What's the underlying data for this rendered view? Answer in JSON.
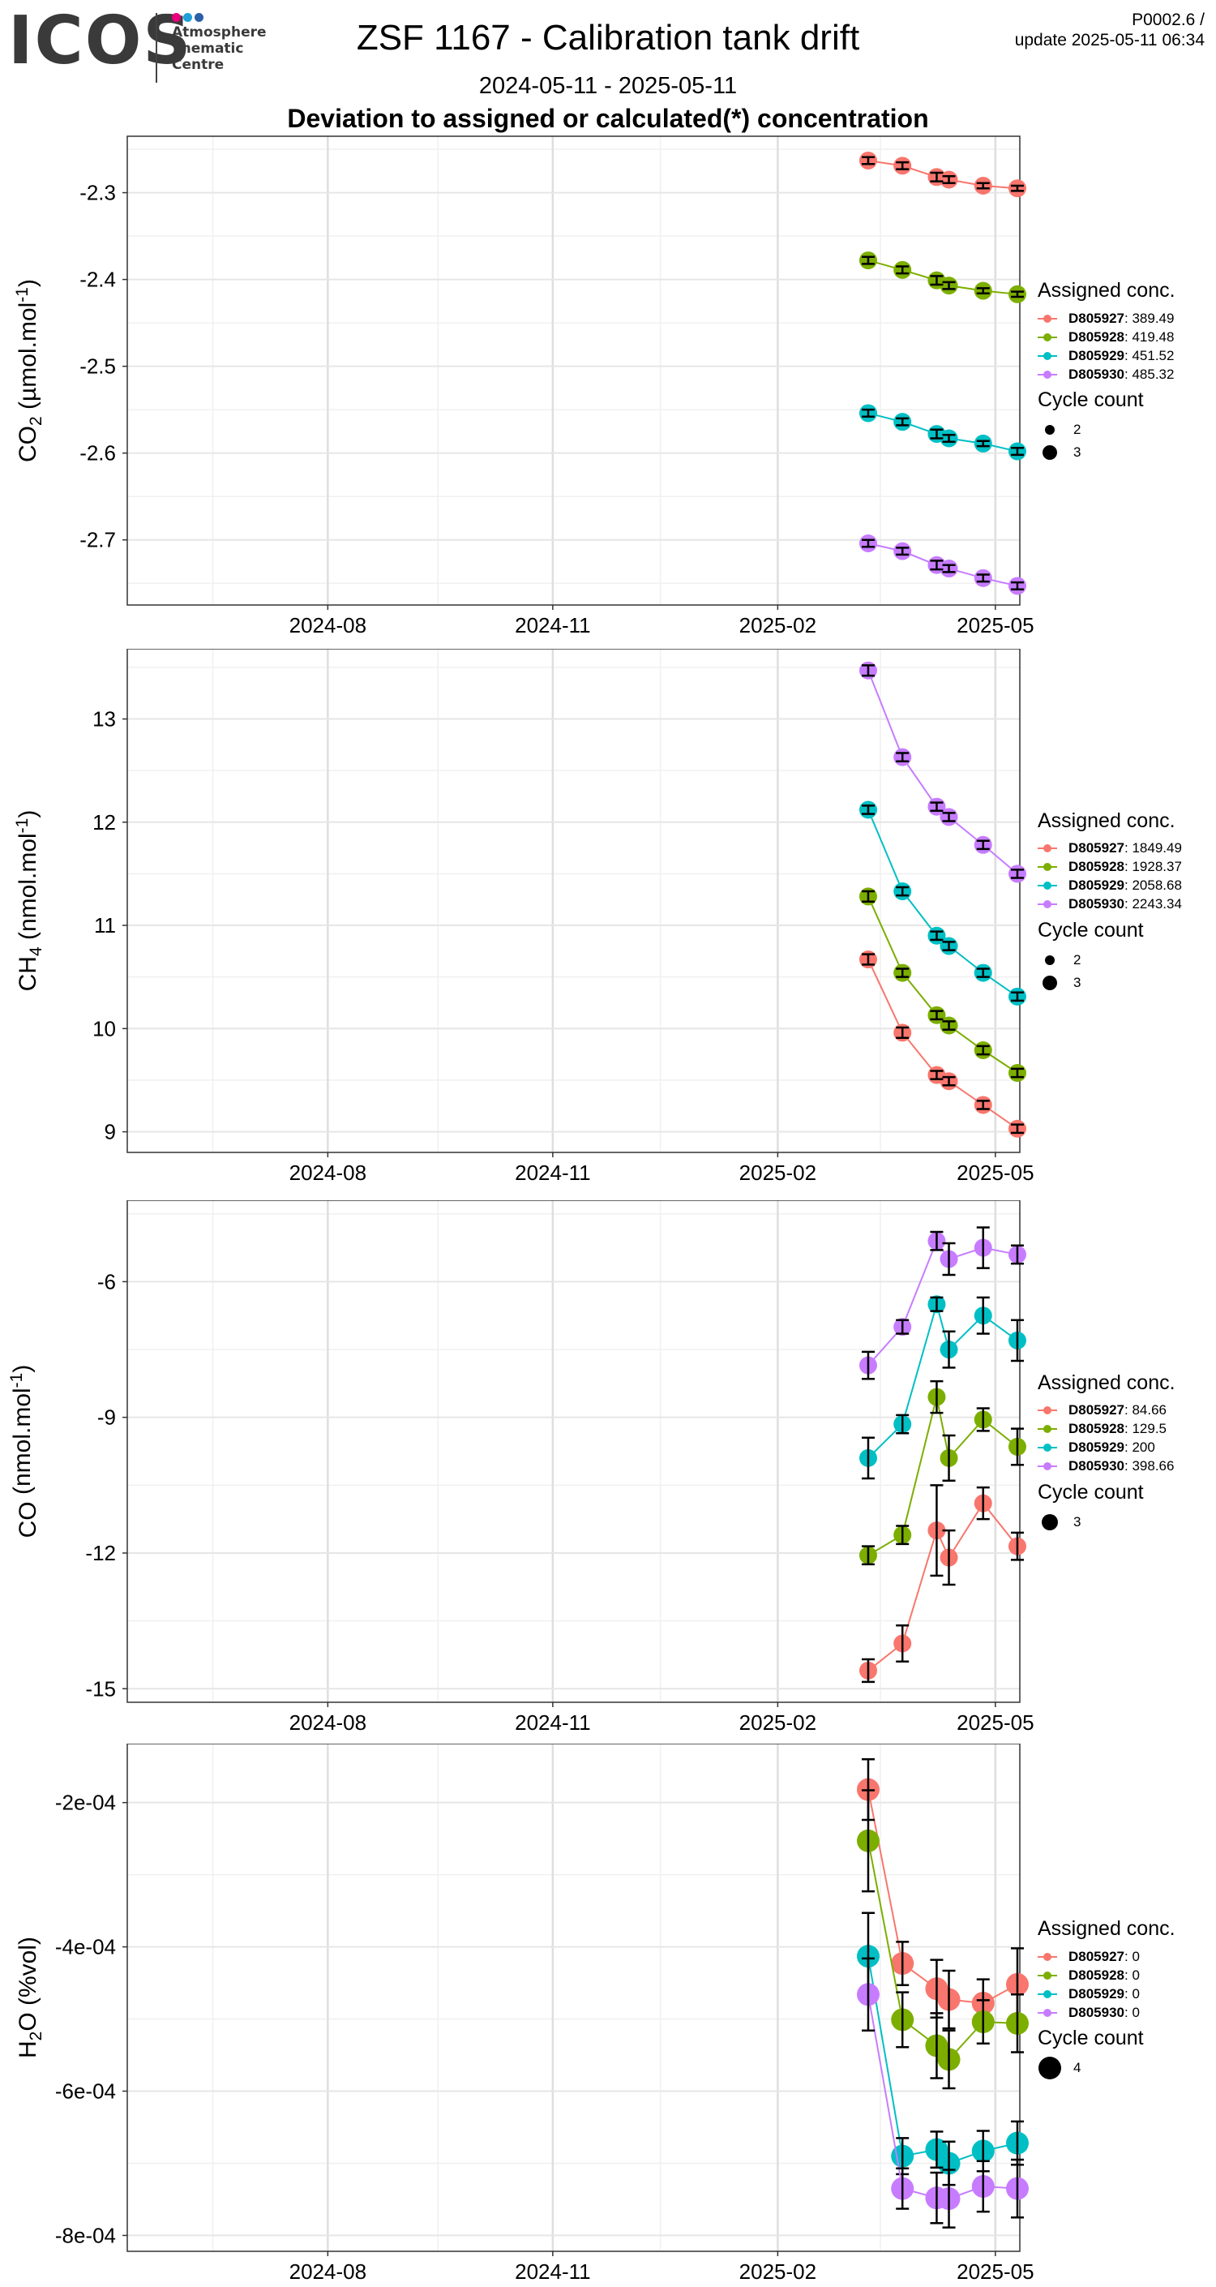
{
  "logo": {
    "word": "ICOS",
    "subtitle": "Atmosphere\nThematic\nCentre",
    "dot_colors": [
      "#e6007e",
      "#1e9fd8",
      "#2c5fa8"
    ]
  },
  "title": "ZSF 1167 - Calibration tank drift",
  "subtitle": "2024-05-11 - 2025-05-11",
  "heading": "Deviation to assigned or calculated(*) concentration",
  "version": {
    "code": "P0002.6 /",
    "update": "update  2025-05-11 06:34"
  },
  "series_colors": [
    "#f8766d",
    "#7cae00",
    "#00bfc4",
    "#c77cff"
  ],
  "x_axis": {
    "range": [
      "2024-05-11",
      "2025-05-11"
    ],
    "ticks": [
      {
        "date": "2024-08-01",
        "label": "2024-08"
      },
      {
        "date": "2024-11-01",
        "label": "2024-11"
      },
      {
        "date": "2025-02-01",
        "label": "2025-02"
      },
      {
        "date": "2025-05-01",
        "label": "2025-05"
      }
    ],
    "minor": [
      "2024-06-15",
      "2024-09-15",
      "2024-12-15",
      "2025-03-15"
    ]
  },
  "chart_data": [
    {
      "type": "scatter",
      "ylabel_main": "CO",
      "ylabel_sub": "2",
      "ylabel_unit": " (µmol.mol",
      "ylabel_sup": "-1",
      "ylabel_end": ")",
      "ylim": [
        -2.775,
        -2.235
      ],
      "yticks": [
        -2.3,
        -2.4,
        -2.5,
        -2.6,
        -2.7
      ],
      "ytick_labels": [
        "-2.3",
        "-2.4",
        "-2.5",
        "-2.6",
        "-2.7"
      ],
      "legend_title": "Assigned conc.",
      "size_title": "Cycle count",
      "size_entries": [
        {
          "label": "2",
          "r": 6
        },
        {
          "label": "3",
          "r": 9
        }
      ],
      "x": [
        "2025-03-10",
        "2025-03-24",
        "2025-04-07",
        "2025-04-12",
        "2025-04-26",
        "2025-05-10"
      ],
      "series": [
        {
          "name": "D805927",
          "legend_value": ": 389.49",
          "values": [
            -2.263,
            -2.269,
            -2.282,
            -2.285,
            -2.292,
            -2.295
          ],
          "err": [
            0.004,
            0.004,
            0.005,
            0.004,
            0.003,
            0.003
          ],
          "size": [
            3,
            3,
            3,
            3,
            3,
            3
          ]
        },
        {
          "name": "D805928",
          "legend_value": ": 419.48",
          "values": [
            -2.378,
            -2.389,
            -2.401,
            -2.407,
            -2.413,
            -2.417
          ],
          "err": [
            0.004,
            0.004,
            0.005,
            0.004,
            0.003,
            0.003
          ],
          "size": [
            3,
            3,
            3,
            3,
            3,
            3
          ]
        },
        {
          "name": "D805929",
          "legend_value": ": 451.52",
          "values": [
            -2.554,
            -2.564,
            -2.578,
            -2.583,
            -2.589,
            -2.598
          ],
          "err": [
            0.004,
            0.004,
            0.005,
            0.004,
            0.003,
            0.004
          ],
          "size": [
            3,
            3,
            3,
            3,
            3,
            3
          ]
        },
        {
          "name": "D805930",
          "legend_value": ": 485.32",
          "values": [
            -2.704,
            -2.713,
            -2.729,
            -2.733,
            -2.744,
            -2.753
          ],
          "err": [
            0.004,
            0.004,
            0.005,
            0.004,
            0.004,
            0.004
          ],
          "size": [
            3,
            3,
            3,
            3,
            3,
            3
          ]
        }
      ]
    },
    {
      "type": "scatter",
      "ylabel_main": "CH",
      "ylabel_sub": "4",
      "ylabel_unit": " (nmol.mol",
      "ylabel_sup": "-1",
      "ylabel_end": ")",
      "ylim": [
        8.8,
        13.68
      ],
      "yticks": [
        9,
        10,
        11,
        12,
        13
      ],
      "ytick_labels": [
        "9",
        "10",
        "11",
        "12",
        "13"
      ],
      "legend_title": "Assigned conc.",
      "size_title": "Cycle count",
      "size_entries": [
        {
          "label": "2",
          "r": 6
        },
        {
          "label": "3",
          "r": 9
        }
      ],
      "x": [
        "2025-03-10",
        "2025-03-24",
        "2025-04-07",
        "2025-04-12",
        "2025-04-26",
        "2025-05-10"
      ],
      "series": [
        {
          "name": "D805927",
          "legend_value": ": 1849.49",
          "values": [
            10.67,
            9.96,
            9.55,
            9.49,
            9.26,
            9.03
          ],
          "err": [
            0.05,
            0.05,
            0.04,
            0.04,
            0.04,
            0.04
          ],
          "size": [
            3,
            3,
            3,
            3,
            3,
            3
          ]
        },
        {
          "name": "D805928",
          "legend_value": ": 1928.37",
          "values": [
            11.28,
            10.54,
            10.13,
            10.03,
            9.79,
            9.57
          ],
          "err": [
            0.05,
            0.04,
            0.04,
            0.04,
            0.04,
            0.04
          ],
          "size": [
            3,
            3,
            3,
            3,
            3,
            3
          ]
        },
        {
          "name": "D805929",
          "legend_value": ": 2058.68",
          "values": [
            12.12,
            11.33,
            10.9,
            10.8,
            10.54,
            10.31
          ],
          "err": [
            0.04,
            0.04,
            0.04,
            0.04,
            0.04,
            0.04
          ],
          "size": [
            3,
            3,
            3,
            3,
            3,
            3
          ]
        },
        {
          "name": "D805930",
          "legend_value": ": 2243.34",
          "values": [
            13.47,
            12.63,
            12.15,
            12.05,
            11.78,
            11.5
          ],
          "err": [
            0.05,
            0.04,
            0.04,
            0.04,
            0.04,
            0.04
          ],
          "size": [
            3,
            3,
            3,
            3,
            3,
            3
          ]
        }
      ]
    },
    {
      "type": "scatter",
      "ylabel_main": "CO",
      "ylabel_sub": "",
      "ylabel_unit": " (nmol.mol",
      "ylabel_sup": "-1",
      "ylabel_end": ")",
      "ylim": [
        -15.3,
        -4.2
      ],
      "yticks": [
        -6,
        -9,
        -12,
        -15
      ],
      "ytick_labels": [
        "-6",
        "-9",
        "-12",
        "-15"
      ],
      "legend_title": "Assigned conc.",
      "size_title": "Cycle count",
      "size_entries": [
        {
          "label": "3",
          "r": 10
        }
      ],
      "x": [
        "2025-03-10",
        "2025-03-24",
        "2025-04-07",
        "2025-04-12",
        "2025-04-26",
        "2025-05-10"
      ],
      "series": [
        {
          "name": "D805927",
          "legend_value": ": 84.66",
          "values": [
            -14.6,
            -14.0,
            -11.5,
            -12.1,
            -10.9,
            -11.85
          ],
          "err": [
            0.25,
            0.4,
            1.0,
            0.6,
            0.35,
            0.3
          ],
          "size": [
            3,
            3,
            3,
            3,
            3,
            3
          ]
        },
        {
          "name": "D805928",
          "legend_value": ": 129.5",
          "values": [
            -12.05,
            -11.6,
            -8.55,
            -9.9,
            -9.05,
            -9.65
          ],
          "err": [
            0.2,
            0.2,
            0.35,
            0.5,
            0.25,
            0.4
          ],
          "size": [
            3,
            3,
            3,
            3,
            3,
            3
          ]
        },
        {
          "name": "D805929",
          "legend_value": ": 200",
          "values": [
            -9.9,
            -9.15,
            -6.5,
            -7.5,
            -6.75,
            -7.3
          ],
          "err": [
            0.45,
            0.2,
            0.15,
            0.4,
            0.4,
            0.45
          ],
          "size": [
            3,
            3,
            3,
            3,
            3,
            3
          ]
        },
        {
          "name": "D805930",
          "legend_value": ": 398.66",
          "values": [
            -7.85,
            -7.0,
            -5.1,
            -5.5,
            -5.25,
            -5.4
          ],
          "err": [
            0.3,
            0.15,
            0.2,
            0.35,
            0.45,
            0.2
          ],
          "size": [
            3,
            3,
            3,
            3,
            3,
            3
          ]
        }
      ]
    },
    {
      "type": "scatter",
      "ylabel_main": "H",
      "ylabel_sub": "2",
      "ylabel_unit": "O (%vol)",
      "ylabel_sup": "",
      "ylabel_end": "",
      "ylim": [
        -0.000822,
        -0.0001183
      ],
      "yticks": [
        -0.0002,
        -0.0004,
        -0.0006,
        -0.0008
      ],
      "ytick_labels": [
        "-2e-04",
        "-4e-04",
        "-6e-04",
        "-8e-04"
      ],
      "legend_title": "Assigned conc.",
      "size_title": "Cycle count",
      "size_entries": [
        {
          "label": "4",
          "r": 14
        }
      ],
      "x": [
        "2025-03-10",
        "2025-03-24",
        "2025-04-07",
        "2025-04-12",
        "2025-04-26",
        "2025-05-10"
      ],
      "series": [
        {
          "name": "D805927",
          "legend_value": ": 0",
          "values": [
            -0.000182,
            -0.000423,
            -0.000458,
            -0.000473,
            -0.000478,
            -0.000452
          ],
          "err": [
            4.2e-05,
            3e-05,
            4e-05,
            4e-05,
            3.3e-05,
            5e-05
          ],
          "size": [
            4,
            4,
            4,
            4,
            4,
            4
          ]
        },
        {
          "name": "D805928",
          "legend_value": ": 0",
          "values": [
            -0.000253,
            -0.000501,
            -0.000537,
            -0.000556,
            -0.000504,
            -0.000506
          ],
          "err": [
            7e-05,
            3.8e-05,
            4.5e-05,
            4e-05,
            3e-05,
            4e-05
          ],
          "size": [
            4,
            4,
            4,
            4,
            4,
            4
          ]
        },
        {
          "name": "D805929",
          "legend_value": ": 0",
          "values": [
            -0.000413,
            -0.00069,
            -0.000681,
            -0.0007,
            -0.000683,
            -0.000672
          ],
          "err": [
            6e-05,
            2.5e-05,
            2.5e-05,
            3e-05,
            2.8e-05,
            3e-05
          ],
          "size": [
            4,
            4,
            4,
            4,
            4,
            4
          ]
        },
        {
          "name": "D805930",
          "legend_value": ": 0",
          "values": [
            -0.000466,
            -0.000735,
            -0.000748,
            -0.000749,
            -0.000732,
            -0.000735
          ],
          "err": [
            5e-05,
            2.8e-05,
            3.5e-05,
            4e-05,
            3.5e-05,
            4e-05
          ],
          "size": [
            4,
            4,
            4,
            4,
            4,
            4
          ]
        }
      ]
    }
  ]
}
